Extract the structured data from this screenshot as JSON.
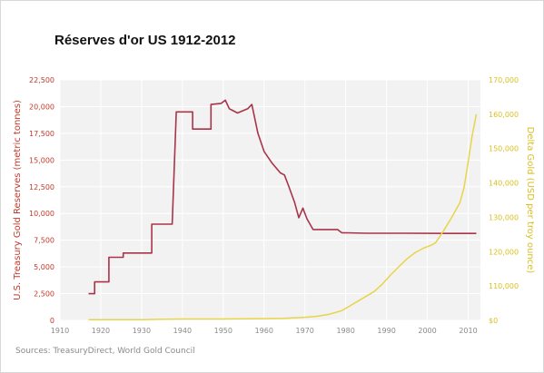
{
  "title": "Réserves d'or US 1912-2012",
  "sources": "Sources: TreasuryDirect, World Gold Council",
  "colors": {
    "reserves": "#a8344a",
    "price": "#e8d44a",
    "left_axis": "#c0392b",
    "right_axis": "#d8c020",
    "plot_bg": "#f2f2f2",
    "grid": "#ffffff"
  },
  "chart_data": {
    "type": "line",
    "title": "Réserves d'or US 1912-2012",
    "xlabel": "",
    "xlim": [
      1910,
      2013
    ],
    "x_ticks": [
      "1910",
      "1920",
      "1930",
      "1940",
      "1950",
      "1960",
      "1970",
      "1980",
      "1990",
      "2000",
      "2010"
    ],
    "y_left": {
      "label": "U.S. Treasury Gold Reserves (metric tonnes)",
      "lim": [
        0,
        22500
      ],
      "ticks": [
        "0",
        "2,500",
        "5,000",
        "7,500",
        "10,000",
        "12,500",
        "15,000",
        "17,500",
        "20,000",
        "22,500"
      ]
    },
    "y_right": {
      "label": "Delta Gold (USD per troy ounce)",
      "lim": [
        100,
        170
      ],
      "ticks": [
        "$0",
        "110,000",
        "120,000",
        "130,000",
        "140,000",
        "150,000",
        "160,000",
        "170,000"
      ]
    },
    "grid": true,
    "series": [
      {
        "axis": "left",
        "points": [
          [
            1917,
            2500
          ],
          [
            1918.5,
            2500
          ],
          [
            1918.5,
            3600
          ],
          [
            1922,
            3600
          ],
          [
            1922,
            5900
          ],
          [
            1925.5,
            5900
          ],
          [
            1925.5,
            6300
          ],
          [
            1932.5,
            6300
          ],
          [
            1932.5,
            9000
          ],
          [
            1937.5,
            9000
          ],
          [
            1938.5,
            19500
          ],
          [
            1942.5,
            19500
          ],
          [
            1942.5,
            17900
          ],
          [
            1947,
            17900
          ],
          [
            1947,
            20200
          ],
          [
            1949.5,
            20300
          ],
          [
            1950.5,
            20600
          ],
          [
            1951.5,
            19800
          ],
          [
            1953.5,
            19400
          ],
          [
            1956,
            19800
          ],
          [
            1957,
            20200
          ],
          [
            1958.5,
            17500
          ],
          [
            1960,
            15800
          ],
          [
            1962,
            14700
          ],
          [
            1964,
            13800
          ],
          [
            1965,
            13600
          ],
          [
            1966,
            12600
          ],
          [
            1967.5,
            11000
          ],
          [
            1968.5,
            9600
          ],
          [
            1969.5,
            10500
          ],
          [
            1970.5,
            9500
          ],
          [
            1972,
            8500
          ],
          [
            1975,
            8500
          ],
          [
            1978,
            8500
          ],
          [
            1979,
            8200
          ],
          [
            1985,
            8150
          ],
          [
            1995,
            8150
          ],
          [
            2005,
            8130
          ],
          [
            2012,
            8130
          ]
        ]
      },
      {
        "axis": "right",
        "points": [
          [
            1917,
            100.2
          ],
          [
            1930,
            100.2
          ],
          [
            1934,
            100.3
          ],
          [
            1940,
            100.4
          ],
          [
            1950,
            100.4
          ],
          [
            1960,
            100.5
          ],
          [
            1965,
            100.6
          ],
          [
            1970,
            100.9
          ],
          [
            1973,
            101.2
          ],
          [
            1976,
            101.8
          ],
          [
            1979,
            102.8
          ],
          [
            1981,
            104.2
          ],
          [
            1984,
            106.3
          ],
          [
            1987,
            108.4
          ],
          [
            1989,
            110.6
          ],
          [
            1991,
            113.2
          ],
          [
            1993,
            115.6
          ],
          [
            1995,
            117.9
          ],
          [
            1997,
            119.7
          ],
          [
            1999,
            121.0
          ],
          [
            2001,
            121.9
          ],
          [
            2002,
            122.6
          ],
          [
            2004,
            126.1
          ],
          [
            2006,
            130.0
          ],
          [
            2008,
            134.3
          ],
          [
            2009,
            138.7
          ],
          [
            2010,
            146.1
          ],
          [
            2011,
            153.9
          ],
          [
            2012,
            160.0
          ]
        ]
      }
    ]
  }
}
